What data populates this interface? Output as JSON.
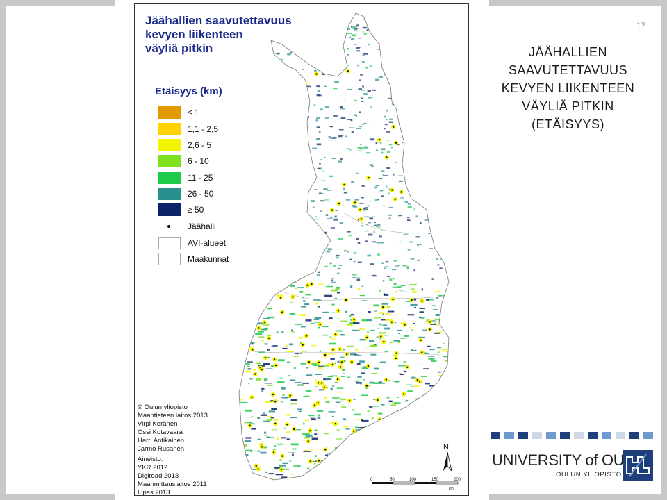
{
  "slide": {
    "number": "17",
    "heading_lines": [
      "JÄÄHALLIEN",
      "SAAVUTETTAVUUS",
      "KEVYEN LIIKENTEEN",
      "VÄYLIÄ PITKIN",
      "(ETÄISYYS)"
    ]
  },
  "map": {
    "title_lines": [
      "Jäähallien saavutettavuus",
      "kevyen liikenteen",
      "väyliä pitkin"
    ],
    "legend_title": "Etäisyys (km)",
    "legend": [
      {
        "label": "≤ 1",
        "color": "#e39a00"
      },
      {
        "label": "1,1 - 2,5",
        "color": "#ffd200"
      },
      {
        "label": "2,6 - 5",
        "color": "#f4f400"
      },
      {
        "label": "6 - 10",
        "color": "#7ee01e"
      },
      {
        "label": "11 - 25",
        "color": "#1fc94a"
      },
      {
        "label": "26 - 50",
        "color": "#2a8f8f"
      },
      {
        "label": "≥ 50",
        "color": "#0c2369"
      },
      {
        "label": "Jäähalli",
        "color": "#111111"
      },
      {
        "label": "AVI-alueet",
        "color": "#ffffff"
      },
      {
        "label": "Maakunnat",
        "color": "#ffffff"
      }
    ],
    "credits": [
      "© Oulun yliopisto",
      "Maantieteen laitos 2013",
      "Virpi Keränen",
      "Ossi Kotavaara",
      "Harri Antikainen",
      "Jarmo Rusanen"
    ],
    "sources": [
      "Aineisto:",
      "YKR 2012",
      "Digiroad 2013",
      "Maanmittauslaitos 2011",
      "Lipas 2013"
    ],
    "north_label": "N",
    "scale_ticks": [
      "0",
      "50",
      "100",
      "150",
      "200"
    ],
    "scale_unit": "km"
  },
  "university": {
    "name": "UNIVERSITY of OULU",
    "subname": "OULUN YLIOPISTO"
  }
}
